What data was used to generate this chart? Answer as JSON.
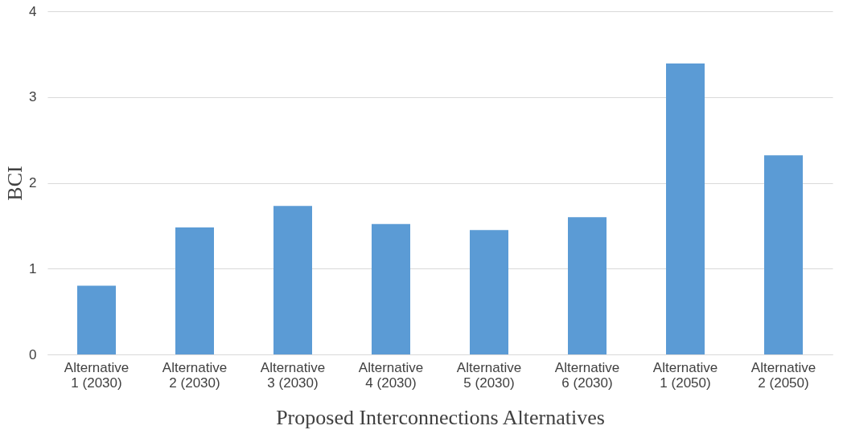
{
  "chart_data": {
    "type": "bar",
    "xlabel": "Proposed Interconnections Alternatives",
    "ylabel": "BCI",
    "categories": [
      "Alternative 1 (2030)",
      "Alternative 2 (2030)",
      "Alternative 3 (2030)",
      "Alternative 4 (2030)",
      "Alternative 5 (2030)",
      "Alternative 6 (2030)",
      "Alternative 1 (2050)",
      "Alternative 2 (2050)"
    ],
    "values": [
      0.8,
      1.48,
      1.73,
      1.52,
      1.45,
      1.6,
      3.39,
      2.32
    ],
    "color": "#5b9bd5",
    "ylim": [
      0,
      4
    ],
    "yticks": [
      0,
      1,
      2,
      3,
      4
    ],
    "grid": "y"
  }
}
